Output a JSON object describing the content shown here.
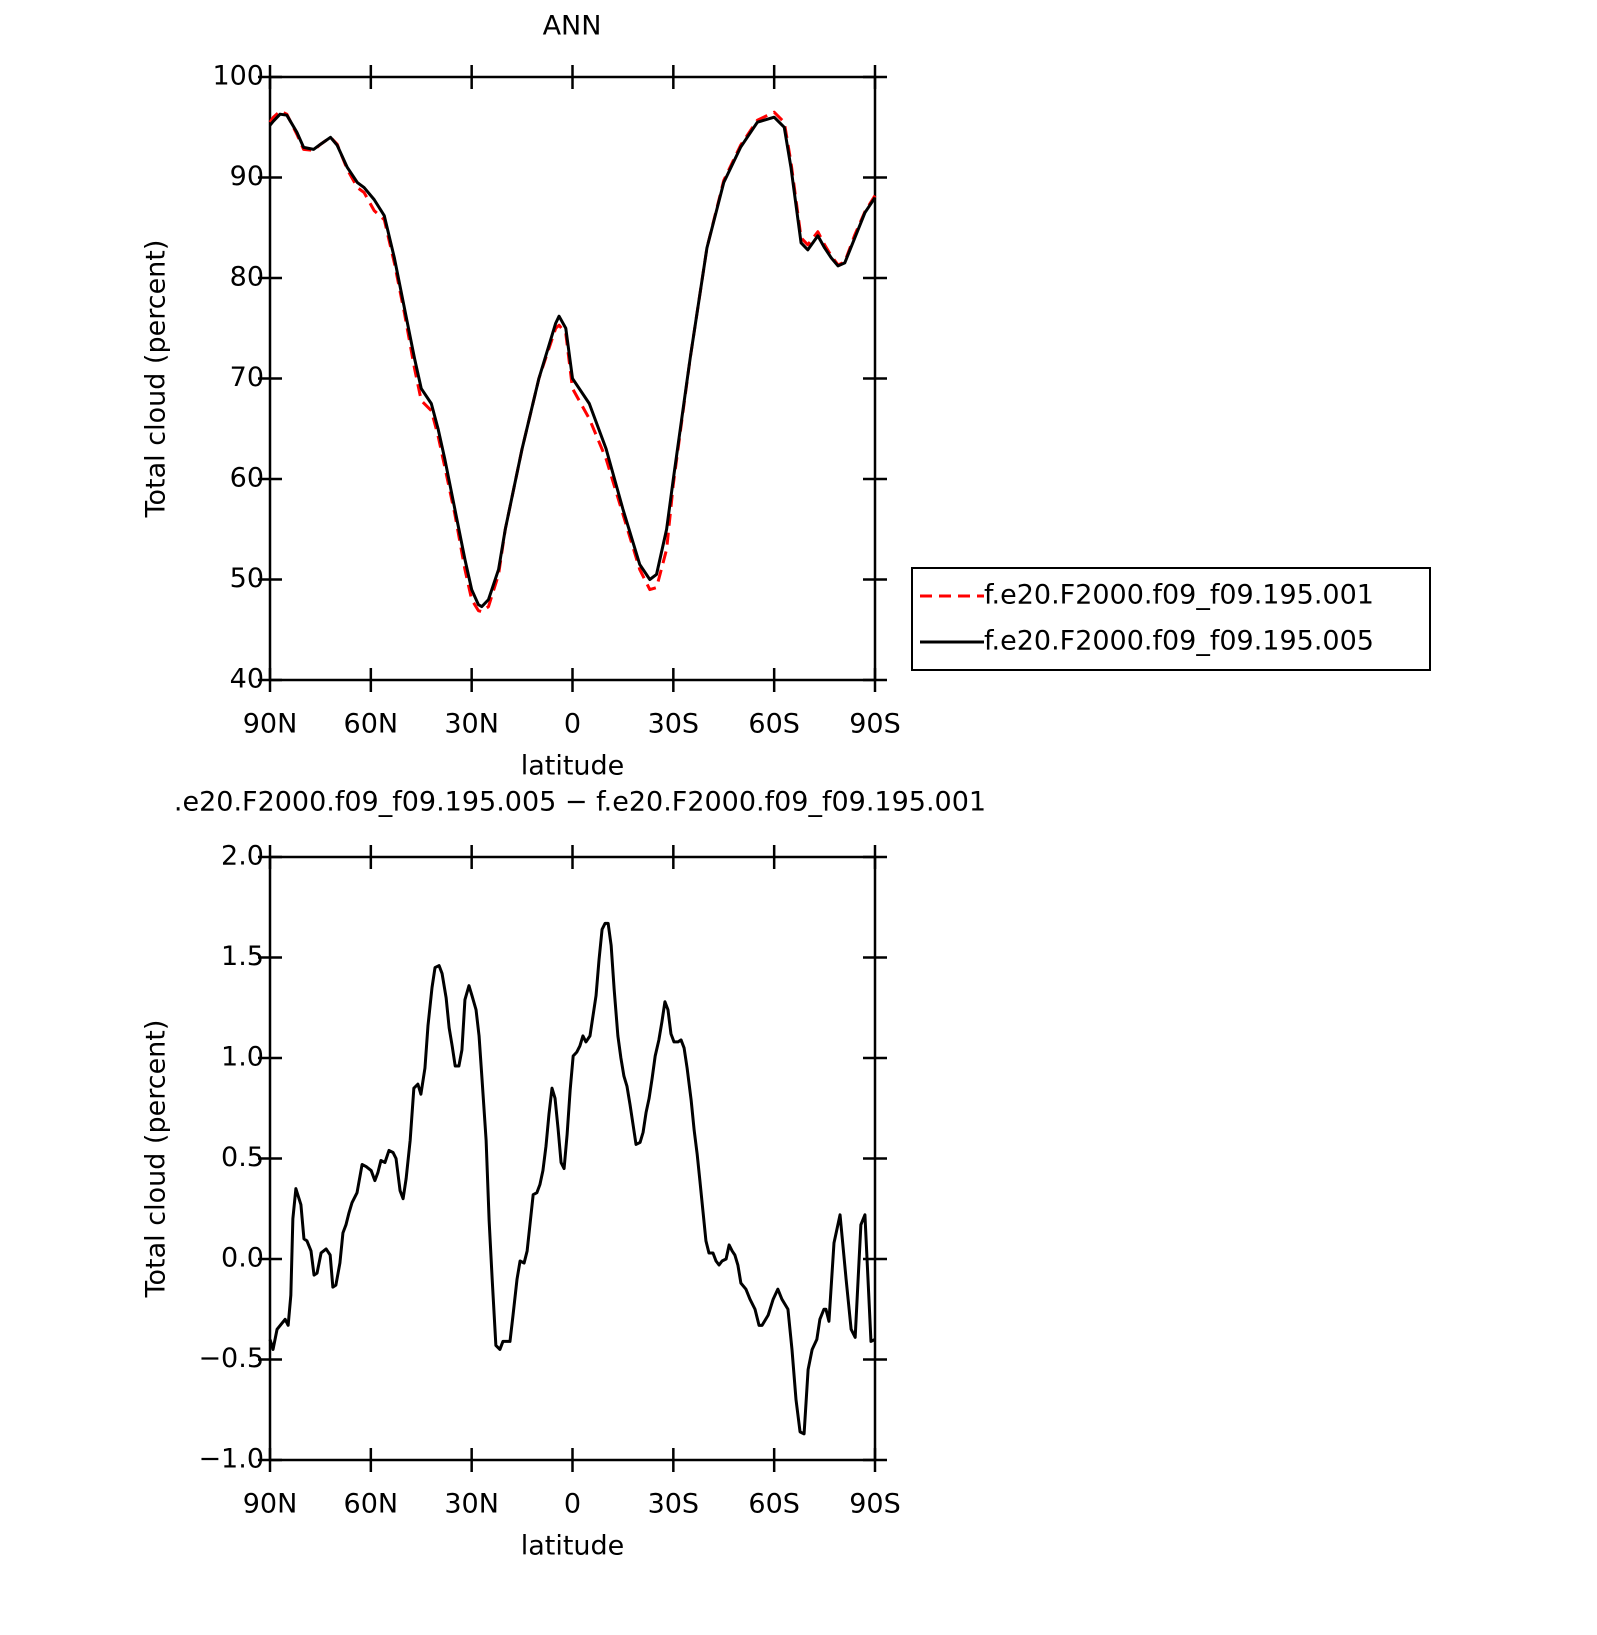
{
  "chart_data": [
    {
      "type": "line",
      "title": "ANN",
      "xlabel": "latitude",
      "ylabel": "Total cloud (percent)",
      "xlim": [
        90,
        -90
      ],
      "ylim": [
        40,
        100
      ],
      "xticks": [
        {
          "value": 90,
          "label": "90N"
        },
        {
          "value": 60,
          "label": "60N"
        },
        {
          "value": 30,
          "label": "30N"
        },
        0,
        {
          "value": -30,
          "label": "30S"
        },
        {
          "value": -60,
          "label": "60S"
        },
        {
          "value": -90,
          "label": "90S"
        }
      ],
      "yticks": [
        40,
        50,
        60,
        70,
        80,
        90,
        100
      ],
      "legend": "right",
      "x": [
        90,
        89,
        87,
        85,
        82,
        80,
        77,
        75,
        72,
        70,
        67,
        64,
        62,
        59,
        56,
        53,
        50,
        47,
        45,
        42,
        40,
        38,
        35,
        32,
        30,
        28,
        27,
        25,
        22,
        20,
        15,
        10,
        5,
        4,
        2,
        0,
        -5,
        -10,
        -15,
        -20,
        -23,
        -25,
        -28,
        -30,
        -35,
        -40,
        -45,
        -50,
        -55,
        -60,
        -63,
        -65,
        -68,
        -70,
        -73,
        -75,
        -77,
        -79,
        -81,
        -84,
        -87,
        -90
      ],
      "series": [
        {
          "name": "f.e20.F2000.f09_f09.195.001",
          "color": "#ff0000",
          "style": "dashed",
          "values": [
            95.5,
            96,
            96.6,
            96.3,
            94.3,
            92.8,
            92.7,
            93.3,
            94,
            93.3,
            90.8,
            89,
            88.5,
            86.7,
            85.8,
            81.5,
            76.5,
            71,
            67.8,
            66.8,
            64.3,
            61.2,
            56.5,
            51,
            48,
            46.9,
            46.8,
            47.3,
            50.5,
            55,
            63,
            70,
            75,
            75.3,
            74.5,
            69,
            66,
            62,
            56.5,
            51,
            49,
            49.2,
            53,
            59.5,
            72,
            83,
            89.7,
            93.2,
            95.7,
            96.5,
            95.5,
            91.5,
            84,
            83.3,
            84.6,
            83.3,
            82.2,
            81.3,
            81.6,
            84.3,
            86.6,
            88.2
          ]
        },
        {
          "name": "f.e20.F2000.f09_f09.195.005",
          "color": "#000000",
          "style": "solid",
          "values": [
            95.2,
            95.6,
            96.3,
            96.2,
            94.5,
            93,
            92.8,
            93.3,
            94,
            93.2,
            91,
            89.5,
            89,
            87.8,
            86.2,
            82,
            77,
            72,
            69,
            67.5,
            65,
            62,
            57,
            52,
            49,
            47.5,
            47.3,
            48,
            51,
            55,
            63,
            70,
            75.5,
            76.2,
            75,
            70,
            67.5,
            63,
            57,
            51.5,
            50,
            50.5,
            55,
            60,
            72,
            83,
            89.5,
            93,
            95.5,
            96,
            95,
            91,
            83.5,
            82.8,
            84.2,
            83,
            82,
            81.2,
            81.5,
            84,
            86.5,
            88
          ]
        }
      ]
    },
    {
      "type": "line",
      "title": ".e20.F2000.f09_f09.195.005 − f.e20.F2000.f09_f09.195.001",
      "xlabel": "latitude",
      "ylabel": "Total cloud (percent)",
      "xlim": [
        90,
        -90
      ],
      "ylim": [
        -1,
        2
      ],
      "xticks": [
        {
          "value": 90,
          "label": "90N"
        },
        {
          "value": 60,
          "label": "60N"
        },
        {
          "value": 30,
          "label": "30N"
        },
        0,
        {
          "value": -30,
          "label": "30S"
        },
        {
          "value": -60,
          "label": "60S"
        },
        {
          "value": -90,
          "label": "90S"
        }
      ],
      "yticks": [
        {
          "value": -1,
          "label": "−1.0"
        },
        {
          "value": -0.5,
          "label": "−0.5"
        },
        {
          "value": 0,
          "label": "0.0"
        },
        0.5,
        {
          "value": 1,
          "label": "1.0"
        },
        1.5,
        {
          "value": 2,
          "label": "2.0"
        }
      ],
      "x": [
        90,
        89.1,
        87.9,
        85.5,
        84.6,
        83.8,
        83.2,
        82.3,
        80.8,
        79.9,
        79,
        77.8,
        76.9,
        76,
        74.8,
        73.3,
        72.1,
        71.3,
        70.4,
        69.2,
        68.3,
        67.4,
        66.5,
        65.6,
        64.1,
        62.6,
        61.4,
        59.9,
        58.8,
        57.9,
        57,
        55.8,
        54.6,
        53.4,
        52.5,
        51.3,
        50.4,
        49.5,
        48.3,
        47.2,
        46,
        45.1,
        43.9,
        43,
        41.8,
        40.9,
        39.7,
        38.8,
        37.6,
        36.7,
        35.8,
        34.9,
        33.8,
        32.9,
        32,
        30.8,
        29.9,
        28.7,
        27.8,
        26.9,
        25.7,
        24.8,
        23.9,
        22.8,
        21.6,
        20.7,
        18.6,
        17.7,
        16.5,
        15.6,
        14.4,
        13.5,
        12.6,
        11.7,
        10.6,
        9.7,
        8.8,
        7.9,
        7,
        6.1,
        5.2,
        4.3,
        3.4,
        2.5,
        1.6,
        0.7,
        -0.2,
        -1.3,
        -2.2,
        -3.1,
        -4,
        -5.2,
        -6.1,
        -7,
        -7.9,
        -8.8,
        -9.7,
        -10.6,
        -11.5,
        -12.4,
        -13.5,
        -14.4,
        -15.3,
        -16.2,
        -17.1,
        -18,
        -18.9,
        -20.1,
        -21,
        -21.9,
        -22.8,
        -23.7,
        -24.6,
        -25.7,
        -26.6,
        -27.5,
        -28.4,
        -29.3,
        -30.2,
        -31.4,
        -32.3,
        -33.2,
        -34.1,
        -35.3,
        -36.2,
        -37.1,
        -37.9,
        -38.8,
        -39.7,
        -40.6,
        -41.8,
        -42.7,
        -43.6,
        -44.5,
        -45.7,
        -46.6,
        -47.5,
        -48.3,
        -49.2,
        -50.1,
        -51.6,
        -52.8,
        -54.3,
        -55.5,
        -56.4,
        -58.2,
        -59.7,
        -61.1,
        -62.3,
        -64.1,
        -65.3,
        -66.5,
        -67.7,
        -68.9,
        -70.1,
        -71.3,
        -72.7,
        -73.6,
        -74.8,
        -75.4,
        -76.3,
        -77.8,
        -79.6,
        -81.4,
        -82.9,
        -84.1,
        -85.8,
        -87,
        -88.8,
        -90
      ],
      "series": [
        {
          "color": "#000000",
          "style": "solid",
          "values": [
            -0.4,
            -0.45,
            -0.35,
            -0.3,
            -0.33,
            -0.18,
            0.2,
            0.35,
            0.27,
            0.1,
            0.09,
            0.04,
            -0.08,
            -0.07,
            0.03,
            0.05,
            0.02,
            -0.14,
            -0.13,
            -0.02,
            0.13,
            0.17,
            0.23,
            0.28,
            0.33,
            0.47,
            0.46,
            0.44,
            0.39,
            0.43,
            0.49,
            0.48,
            0.54,
            0.53,
            0.5,
            0.34,
            0.3,
            0.4,
            0.59,
            0.85,
            0.87,
            0.82,
            0.95,
            1.16,
            1.35,
            1.45,
            1.46,
            1.42,
            1.3,
            1.15,
            1.06,
            0.96,
            0.96,
            1.04,
            1.29,
            1.36,
            1.31,
            1.24,
            1.11,
            0.89,
            0.59,
            0.19,
            -0.1,
            -0.43,
            -0.45,
            -0.41,
            -0.41,
            -0.28,
            -0.1,
            -0.01,
            -0.02,
            0.04,
            0.18,
            0.32,
            0.33,
            0.37,
            0.44,
            0.56,
            0.72,
            0.85,
            0.8,
            0.65,
            0.48,
            0.45,
            0.62,
            0.84,
            1.01,
            1.03,
            1.06,
            1.11,
            1.08,
            1.11,
            1.21,
            1.31,
            1.49,
            1.64,
            1.67,
            1.67,
            1.56,
            1.34,
            1.11,
            1.0,
            0.91,
            0.86,
            0.77,
            0.67,
            0.57,
            0.58,
            0.63,
            0.73,
            0.8,
            0.9,
            1.01,
            1.09,
            1.18,
            1.28,
            1.24,
            1.12,
            1.08,
            1.08,
            1.09,
            1.05,
            0.95,
            0.79,
            0.64,
            0.52,
            0.39,
            0.24,
            0.09,
            0.03,
            0.03,
            -0.01,
            -0.03,
            -0.01,
            0.0,
            0.07,
            0.04,
            0.02,
            -0.03,
            -0.12,
            -0.15,
            -0.2,
            -0.25,
            -0.33,
            -0.33,
            -0.28,
            -0.2,
            -0.15,
            -0.2,
            -0.25,
            -0.45,
            -0.7,
            -0.86,
            -0.87,
            -0.55,
            -0.45,
            -0.4,
            -0.3,
            -0.25,
            -0.25,
            -0.31,
            0.08,
            0.22,
            -0.1,
            -0.35,
            -0.39,
            0.17,
            0.22,
            -0.41,
            -0.4
          ]
        }
      ]
    }
  ]
}
